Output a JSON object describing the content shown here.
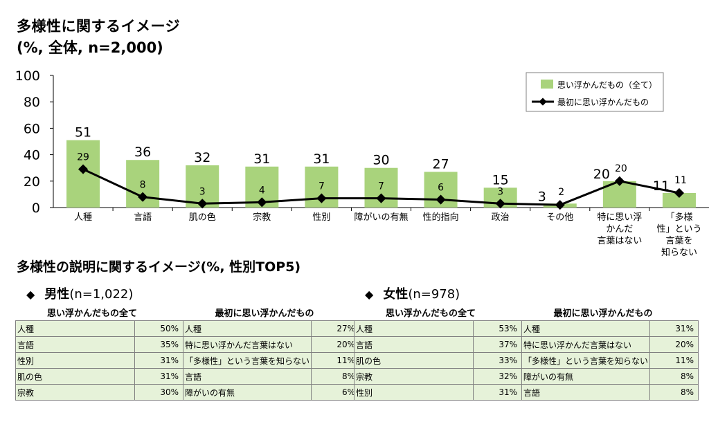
{
  "title": "多様性に関するイメージ",
  "subtitle": "(%, 全体, n=2,000)",
  "chart_data": {
    "type": "bar",
    "categories": [
      "人種",
      "言語",
      "肌の色",
      "宗教",
      "性別",
      "障がいの有無",
      "性的指向",
      "政治",
      "その他",
      "特に思い浮かんだ言葉はない",
      "「多様性」という言葉を知らない"
    ],
    "category_lines": [
      [
        "人種"
      ],
      [
        "言語"
      ],
      [
        "肌の色"
      ],
      [
        "宗教"
      ],
      [
        "性別"
      ],
      [
        "障がいの有無"
      ],
      [
        "性的指向"
      ],
      [
        "政治"
      ],
      [
        "その他"
      ],
      [
        "特に思い浮",
        "かんだ",
        "言葉はない"
      ],
      [
        "「多様",
        "性」という",
        "言葉を",
        "知らない"
      ]
    ],
    "series": [
      {
        "name": "思い浮かんだもの（全て）",
        "kind": "bar",
        "color": "#a9d37c",
        "values": [
          51,
          36,
          32,
          31,
          31,
          30,
          27,
          15,
          3,
          20,
          11
        ]
      },
      {
        "name": "最初に思い浮かんだもの",
        "kind": "line",
        "color": "#000000",
        "values": [
          29,
          8,
          3,
          4,
          7,
          7,
          6,
          3,
          2,
          20,
          11
        ]
      }
    ],
    "ylim": [
      0,
      100
    ],
    "yticks": [
      0,
      20,
      40,
      60,
      80,
      100
    ],
    "legend_position": "top-right",
    "grid": false
  },
  "section_title": "多様性の説明に関するイメージ(%, 性別TOP5)",
  "groups": [
    {
      "bullet": "◆",
      "label": "男性",
      "n": "(n=1,022)",
      "col1_header": "思い浮かんだもの全て",
      "col2_header": "最初に思い浮かんだもの",
      "rows": [
        {
          "a_label": "人種",
          "a_value": "50%",
          "b_label": "人種",
          "b_value": "27%"
        },
        {
          "a_label": "言語",
          "a_value": "35%",
          "b_label": "特に思い浮かんだ言葉はない",
          "b_value": "20%"
        },
        {
          "a_label": "性別",
          "a_value": "31%",
          "b_label": "「多様性」という言葉を知らない",
          "b_value": "11%"
        },
        {
          "a_label": "肌の色",
          "a_value": "31%",
          "b_label": "言語",
          "b_value": "8%"
        },
        {
          "a_label": "宗教",
          "a_value": "30%",
          "b_label": "障がいの有無",
          "b_value": "6%"
        }
      ]
    },
    {
      "bullet": "◆",
      "label": "女性",
      "n": "(n=978)",
      "col1_header": "思い浮かんだもの全て",
      "col2_header": "最初に思い浮かんだもの",
      "rows": [
        {
          "a_label": "人種",
          "a_value": "53%",
          "b_label": "人種",
          "b_value": "31%"
        },
        {
          "a_label": "言語",
          "a_value": "37%",
          "b_label": "特に思い浮かんだ言葉はない",
          "b_value": "20%"
        },
        {
          "a_label": "肌の色",
          "a_value": "33%",
          "b_label": "「多様性」という言葉を知らない",
          "b_value": "11%"
        },
        {
          "a_label": "宗教",
          "a_value": "32%",
          "b_label": "障がいの有無",
          "b_value": "8%"
        },
        {
          "a_label": "性別",
          "a_value": "31%",
          "b_label": "言語",
          "b_value": "8%"
        }
      ]
    }
  ]
}
